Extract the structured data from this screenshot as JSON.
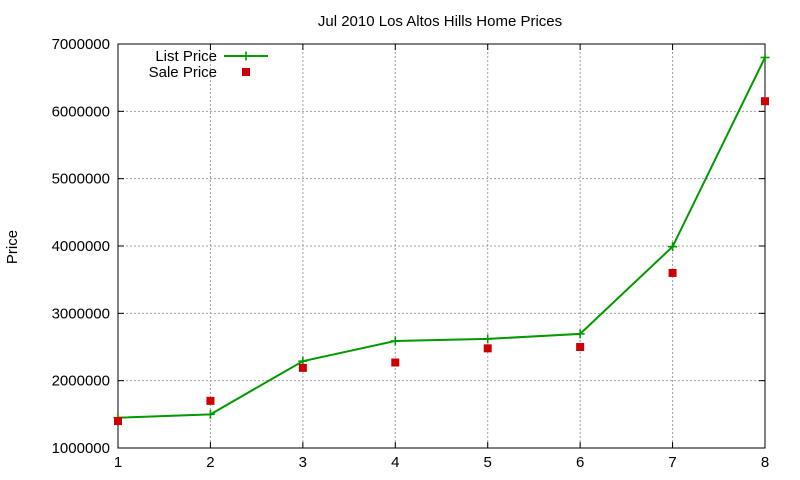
{
  "chart_data": {
    "type": "line",
    "title": "Jul 2010 Los Altos Hills Home Prices",
    "xlabel": "",
    "ylabel": "Price",
    "xlim": [
      1,
      8
    ],
    "ylim": [
      1000000,
      7000000
    ],
    "x_ticks": [
      "1",
      "2",
      "3",
      "4",
      "5",
      "6",
      "7",
      "8"
    ],
    "y_ticks": [
      "1000000",
      "2000000",
      "3000000",
      "4000000",
      "5000000",
      "6000000",
      "7000000"
    ],
    "grid": true,
    "legend_position": "top-left",
    "series": [
      {
        "name": "List Price",
        "style": "line-with-plus-markers",
        "color": "#009900",
        "x": [
          1,
          2,
          3,
          4,
          5,
          6,
          7,
          8
        ],
        "y": [
          1450000,
          1500000,
          2290000,
          2590000,
          2620000,
          2695000,
          3990000,
          6800000
        ]
      },
      {
        "name": "Sale Price",
        "style": "square-markers",
        "color": "#cc0000",
        "x": [
          1,
          2,
          3,
          4,
          5,
          6,
          7,
          8
        ],
        "y": [
          1400000,
          1700000,
          2190000,
          2270000,
          2480000,
          2500000,
          3600000,
          6150000
        ]
      }
    ]
  }
}
